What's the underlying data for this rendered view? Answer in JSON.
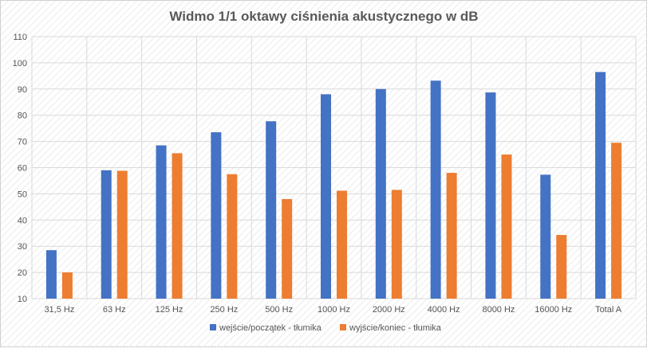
{
  "chart_data": {
    "type": "bar",
    "title": "Widmo 1/1 oktawy ciśnienia akustycznego w dB",
    "xlabel": "",
    "ylabel": "",
    "ylim": [
      10,
      110
    ],
    "yticks": [
      10,
      20,
      30,
      40,
      50,
      60,
      70,
      80,
      90,
      100,
      110
    ],
    "grid": true,
    "legend_position": "bottom",
    "categories": [
      "31,5 Hz",
      "63 Hz",
      "125 Hz",
      "250 Hz",
      "500 Hz",
      "1000 Hz",
      "2000 Hz",
      "4000 Hz",
      "8000 Hz",
      "16000 Hz",
      "Total A"
    ],
    "series": [
      {
        "name": "wejście/początek - tłumika",
        "color": "#4472c4",
        "values": [
          28.5,
          59.0,
          68.5,
          73.5,
          77.7,
          88.0,
          90.0,
          93.2,
          88.7,
          57.3,
          96.5
        ]
      },
      {
        "name": "wyjście/koniec - tłumika",
        "color": "#ed7d31",
        "values": [
          20.0,
          58.8,
          65.5,
          57.5,
          48.0,
          51.2,
          51.5,
          58.0,
          65.0,
          34.3,
          69.5
        ]
      }
    ]
  }
}
